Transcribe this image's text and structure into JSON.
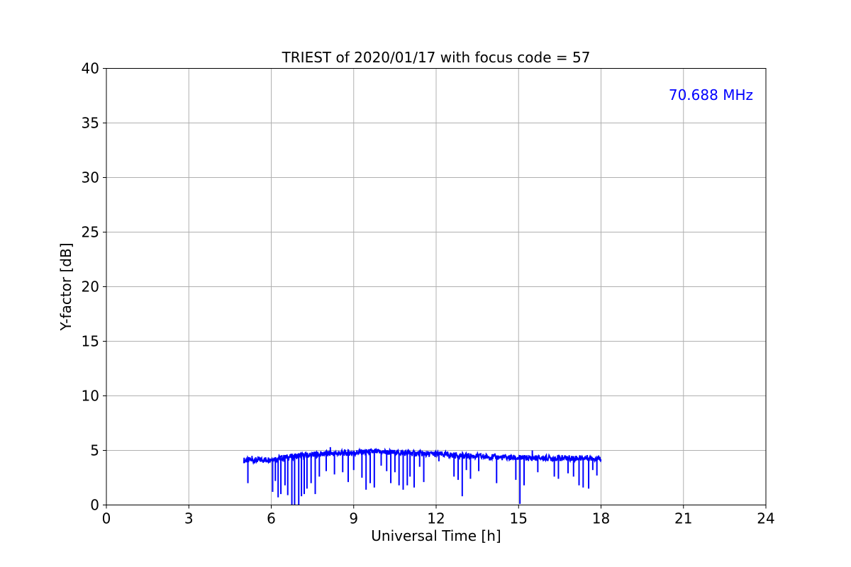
{
  "chart_data": {
    "type": "line",
    "title": "TRIEST of 2020/01/17 with focus code = 57",
    "xlabel": "Universal Time [h]",
    "ylabel": "Y-factor [dB]",
    "xlim": [
      0,
      24
    ],
    "ylim": [
      0,
      40
    ],
    "xticks": [
      0,
      3,
      6,
      9,
      12,
      15,
      18,
      21,
      24
    ],
    "yticks": [
      0,
      5,
      10,
      15,
      20,
      25,
      30,
      35,
      40
    ],
    "grid": true,
    "annotation": {
      "text": "70.688 MHz",
      "color": "#0000ff",
      "placement": "top-right"
    },
    "series": [
      {
        "color": "#0000ff",
        "baseline": [
          [
            5.0,
            4.1
          ],
          [
            5.5,
            4.1
          ],
          [
            6.0,
            4.2
          ],
          [
            6.5,
            4.35
          ],
          [
            7.0,
            4.5
          ],
          [
            7.5,
            4.6
          ],
          [
            8.0,
            4.7
          ],
          [
            8.5,
            4.75
          ],
          [
            9.0,
            4.8
          ],
          [
            9.5,
            4.85
          ],
          [
            10.0,
            4.85
          ],
          [
            10.5,
            4.8
          ],
          [
            11.0,
            4.75
          ],
          [
            11.5,
            4.7
          ],
          [
            12.0,
            4.65
          ],
          [
            12.5,
            4.6
          ],
          [
            13.0,
            4.5
          ],
          [
            13.5,
            4.45
          ],
          [
            14.0,
            4.4
          ],
          [
            14.5,
            4.35
          ],
          [
            15.0,
            4.3
          ],
          [
            15.5,
            4.3
          ],
          [
            16.0,
            4.3
          ],
          [
            16.5,
            4.3
          ],
          [
            17.0,
            4.3
          ],
          [
            17.5,
            4.3
          ],
          [
            18.0,
            4.3
          ]
        ],
        "dips": [
          [
            5.15,
            2.0
          ],
          [
            6.05,
            1.2
          ],
          [
            6.15,
            2.2
          ],
          [
            6.25,
            0.7
          ],
          [
            6.35,
            1.0
          ],
          [
            6.5,
            1.8
          ],
          [
            6.6,
            0.9
          ],
          [
            6.75,
            0.0
          ],
          [
            6.85,
            0.0
          ],
          [
            7.0,
            0.0
          ],
          [
            7.1,
            0.8
          ],
          [
            7.2,
            1.0
          ],
          [
            7.3,
            1.5
          ],
          [
            7.45,
            2.0
          ],
          [
            7.6,
            1.0
          ],
          [
            7.75,
            2.6
          ],
          [
            8.0,
            3.1
          ],
          [
            8.3,
            2.8
          ],
          [
            8.6,
            3.0
          ],
          [
            8.8,
            2.1
          ],
          [
            9.0,
            3.2
          ],
          [
            9.3,
            2.5
          ],
          [
            9.45,
            1.4
          ],
          [
            9.6,
            2.0
          ],
          [
            9.75,
            1.6
          ],
          [
            10.0,
            3.6
          ],
          [
            10.2,
            3.1
          ],
          [
            10.35,
            2.0
          ],
          [
            10.5,
            3.0
          ],
          [
            10.65,
            1.8
          ],
          [
            10.8,
            1.4
          ],
          [
            10.95,
            1.8
          ],
          [
            11.05,
            2.6
          ],
          [
            11.2,
            1.6
          ],
          [
            11.4,
            3.5
          ],
          [
            11.55,
            2.1
          ],
          [
            12.1,
            4.0
          ],
          [
            12.65,
            2.6
          ],
          [
            12.8,
            2.3
          ],
          [
            12.95,
            0.8
          ],
          [
            13.1,
            3.2
          ],
          [
            13.25,
            2.4
          ],
          [
            13.55,
            3.1
          ],
          [
            14.2,
            2.0
          ],
          [
            14.9,
            2.3
          ],
          [
            15.05,
            0.1
          ],
          [
            15.2,
            1.8
          ],
          [
            15.7,
            3.0
          ],
          [
            16.3,
            2.6
          ],
          [
            16.45,
            2.4
          ],
          [
            16.8,
            2.9
          ],
          [
            17.0,
            2.6
          ],
          [
            17.2,
            1.8
          ],
          [
            17.35,
            1.6
          ],
          [
            17.55,
            1.5
          ],
          [
            17.7,
            3.2
          ],
          [
            17.85,
            2.7
          ]
        ],
        "spikes": [
          [
            5.3,
            4.5
          ],
          [
            8.15,
            5.3
          ],
          [
            15.5,
            5.0
          ],
          [
            9.8,
            5.0
          ]
        ]
      }
    ]
  }
}
